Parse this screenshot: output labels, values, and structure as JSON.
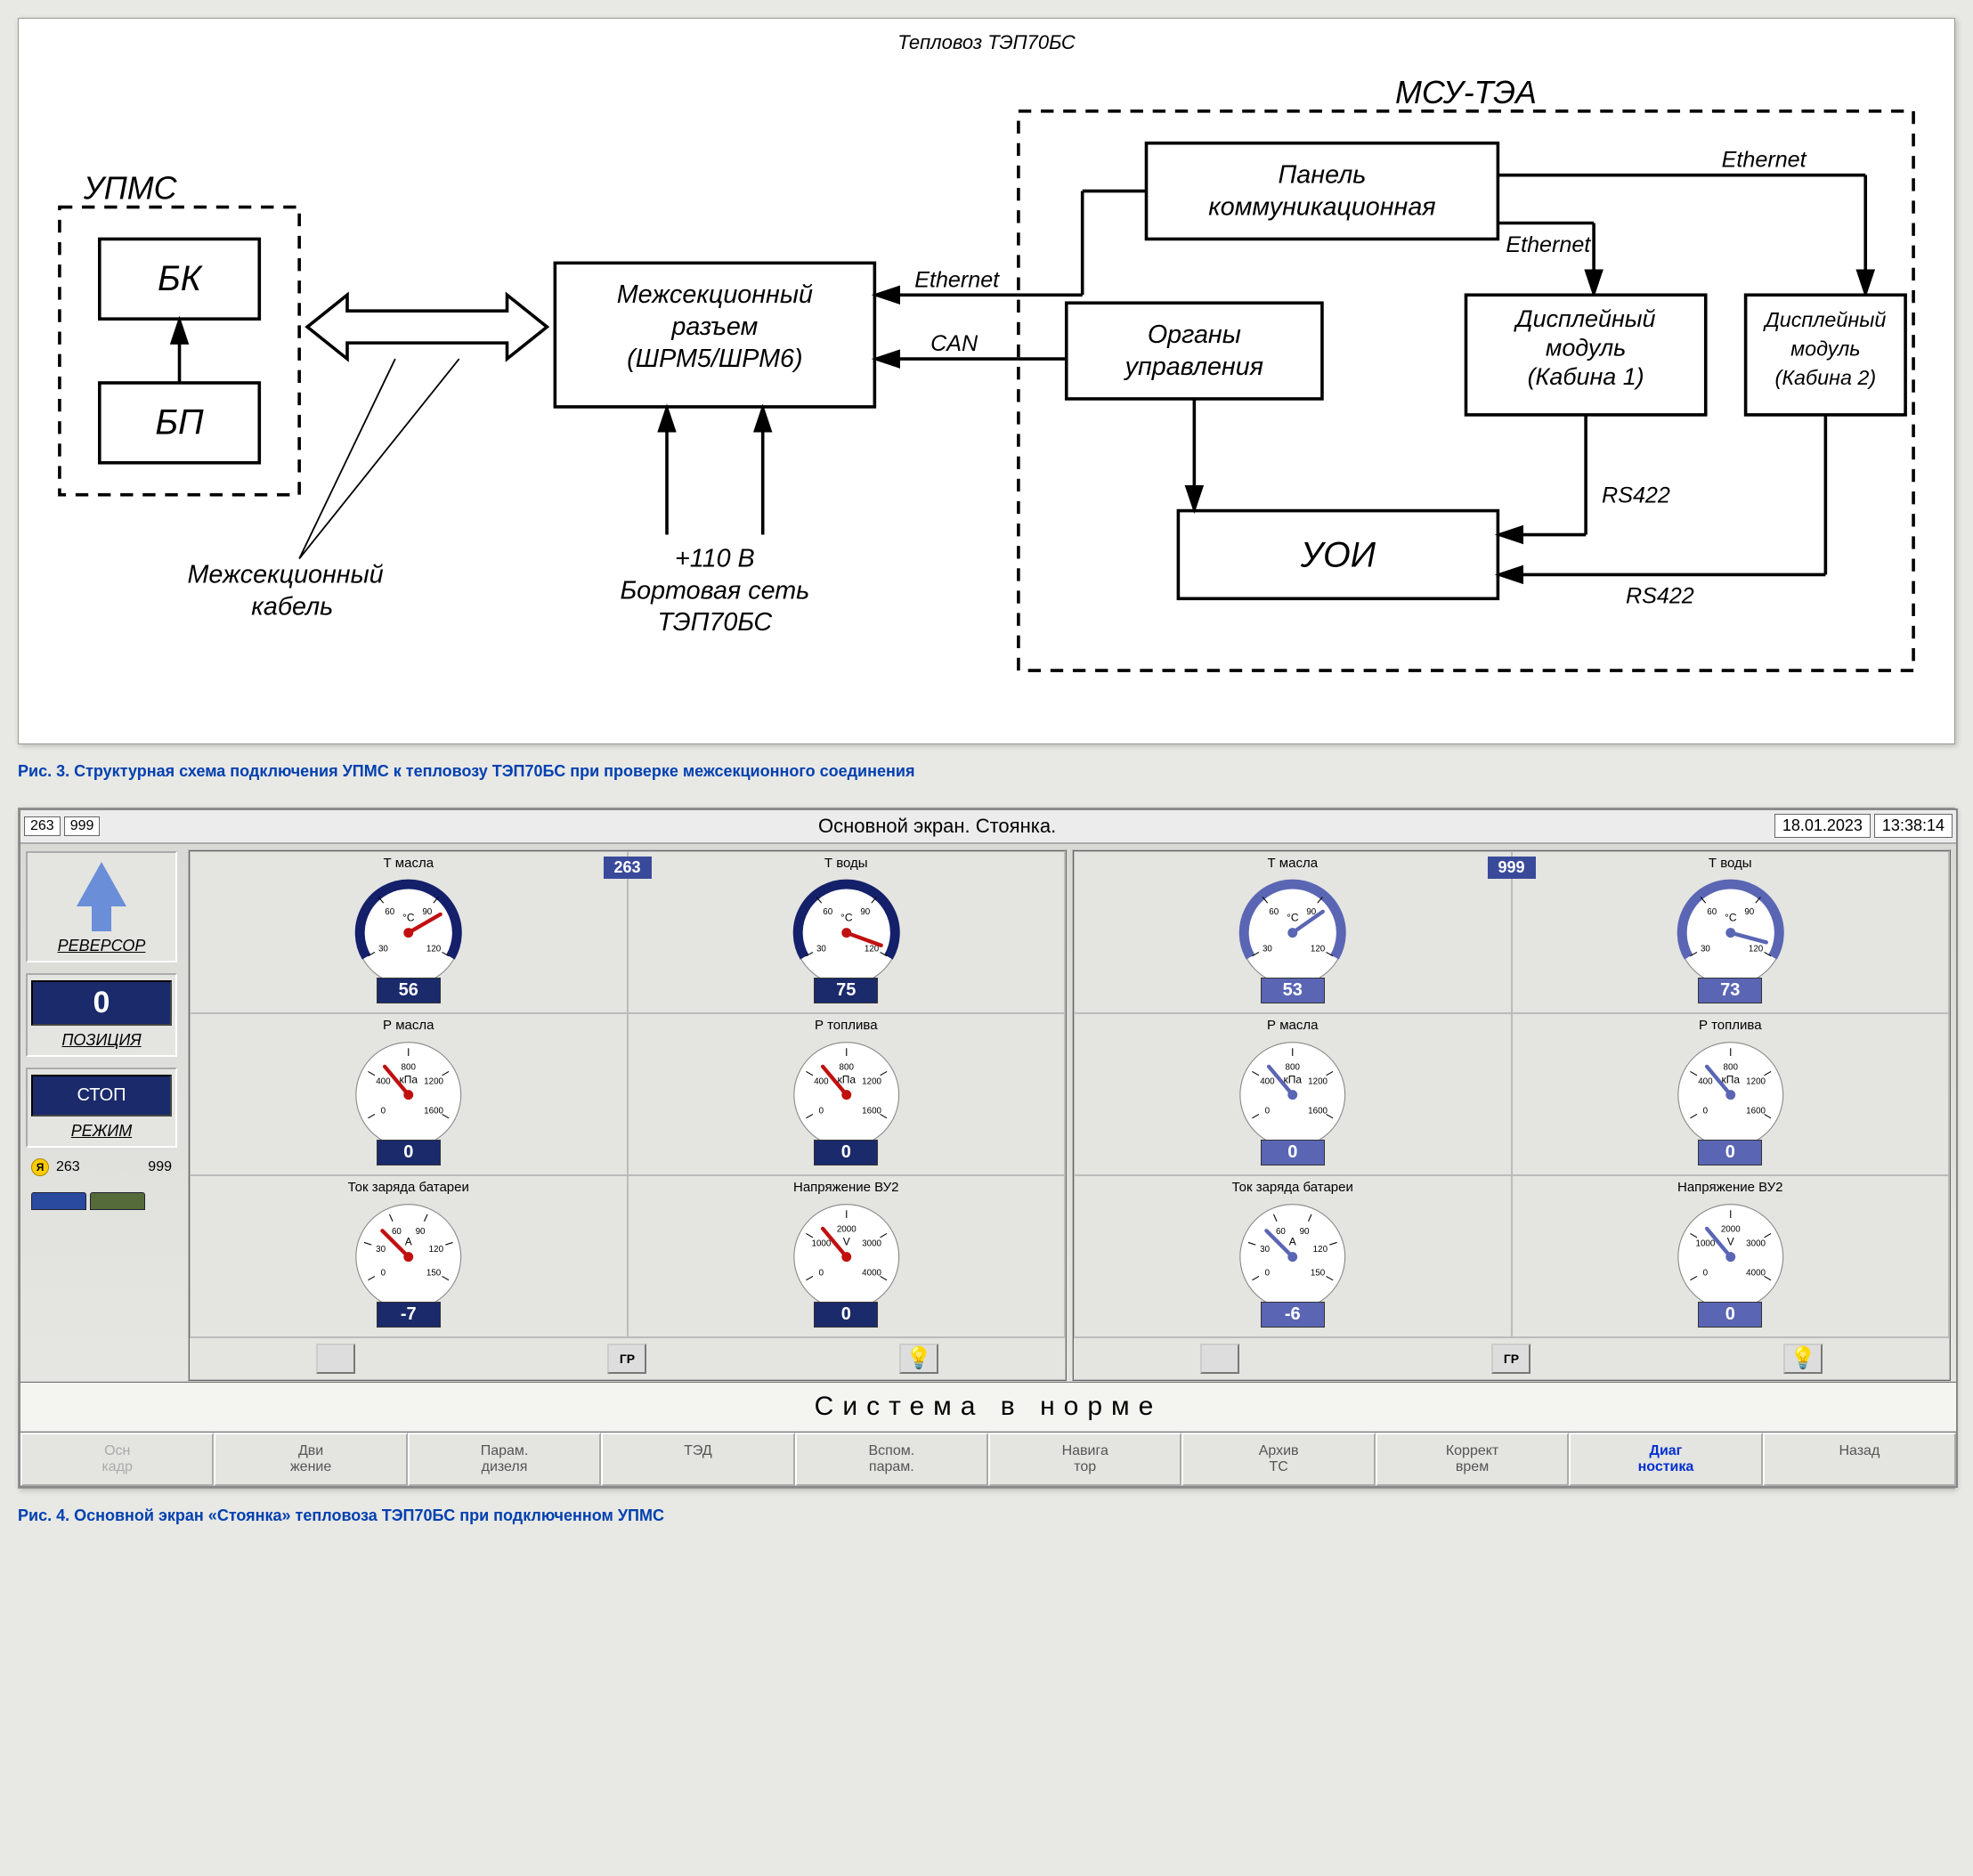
{
  "diagram": {
    "title": "Тепловоз ТЭП70БС",
    "group_upms": "УПМС",
    "group_msu": "МСУ-ТЭА",
    "nodes": {
      "bk": "БК",
      "bp": "БП",
      "conn": "Межсекционный\nразъем\n(ШРМ5/ШРМ6)",
      "panel": "Панель\nкоммуникационная",
      "organ": "Органы\nуправления",
      "disp1": "Дисплейный\nмодуль\n(Кабина 1)",
      "disp2": "Дисплейный\nмодуль\n(Кабина 2)",
      "uoi": "УОИ"
    },
    "labels": {
      "cable": "Межсекционный\nкабель",
      "power": "+110 В\nБортовая сеть\nТЭП70БС",
      "eth": "Ethernet",
      "can": "CAN",
      "rs": "RS422"
    },
    "colors": {
      "stroke": "#000000",
      "bg": "#ffffff"
    },
    "font": {
      "family": "serif-italic",
      "node_size": 18,
      "label_size": 14
    }
  },
  "caption3": "Рис. 3. Структурная схема подключения УПМС к тепловозу ТЭП70БС при проверке межсекционного соединения",
  "caption4": "Рис. 4. Основной экран «Стоянка» тепловоза ТЭП70БС при подключенном УПМС",
  "screen": {
    "chips": [
      "263",
      "999"
    ],
    "title": "Основной экран. Стоянка.",
    "date": "18.01.2023",
    "time": "13:38:14",
    "left": {
      "reversor": "РЕВЕРСОР",
      "position_val": "0",
      "position_lbl": "ПОЗИЦИЯ",
      "stop": "СТОП",
      "mode": "РЕЖИМ"
    },
    "loco_strip": {
      "ya": "Я",
      "a": "263",
      "b": "999"
    },
    "sections": [
      {
        "chip": "263",
        "readout_color": "#1a2a6b",
        "arc_color": "#14206a",
        "needle_color": "#c01010",
        "gauges": [
          [
            {
              "title": "Т масла",
              "unit": "°C",
              "ticks": [
                "30",
                "60",
                "90",
                "120"
              ],
              "value": "56",
              "angle": -30
            },
            {
              "title": "Т воды",
              "unit": "°C",
              "ticks": [
                "30",
                "60",
                "90",
                "120"
              ],
              "value": "75",
              "angle": 20
            }
          ],
          [
            {
              "title": "Р масла",
              "unit": "кПа",
              "ticks": [
                "0",
                "400",
                "800",
                "1200",
                "1600"
              ],
              "value": "0",
              "angle": -130
            },
            {
              "title": "Р топлива",
              "unit": "кПа",
              "ticks": [
                "0",
                "400",
                "800",
                "1200",
                "1600"
              ],
              "value": "0",
              "angle": -130
            }
          ],
          [
            {
              "title": "Ток заряда батареи",
              "unit": "А",
              "ticks": [
                "0",
                "30",
                "60",
                "90",
                "120",
                "150"
              ],
              "value": "-7",
              "angle": -135
            },
            {
              "title": "Напряжение ВУ2",
              "unit": "V",
              "ticks": [
                "0",
                "1000",
                "2000",
                "3000",
                "4000"
              ],
              "value": "0",
              "angle": -130
            }
          ]
        ]
      },
      {
        "chip": "999",
        "readout_color": "#5a66b4",
        "arc_color": "#5a66b4",
        "needle_color": "#5a66b4",
        "gauges": [
          [
            {
              "title": "Т масла",
              "unit": "°C",
              "ticks": [
                "30",
                "60",
                "90",
                "120"
              ],
              "value": "53",
              "angle": -35
            },
            {
              "title": "Т воды",
              "unit": "°C",
              "ticks": [
                "30",
                "60",
                "90",
                "120"
              ],
              "value": "73",
              "angle": 15
            }
          ],
          [
            {
              "title": "Р масла",
              "unit": "кПа",
              "ticks": [
                "0",
                "400",
                "800",
                "1200",
                "1600"
              ],
              "value": "0",
              "angle": -130
            },
            {
              "title": "Р топлива",
              "unit": "кПа",
              "ticks": [
                "0",
                "400",
                "800",
                "1200",
                "1600"
              ],
              "value": "0",
              "angle": -130
            }
          ],
          [
            {
              "title": "Ток заряда батареи",
              "unit": "А",
              "ticks": [
                "0",
                "30",
                "60",
                "90",
                "120",
                "150"
              ],
              "value": "-6",
              "angle": -135
            },
            {
              "title": "Напряжение ВУ2",
              "unit": "V",
              "ticks": [
                "0",
                "1000",
                "2000",
                "3000",
                "4000"
              ],
              "value": "0",
              "angle": -130
            }
          ]
        ]
      }
    ],
    "icons": {
      "gr": "ГР"
    },
    "status": "Система в норме",
    "tabs": [
      {
        "label": "Осн\nкадр",
        "state": "greyed"
      },
      {
        "label": "Дви\nжение",
        "state": ""
      },
      {
        "label": "Парам.\nдизеля",
        "state": ""
      },
      {
        "label": "ТЭД",
        "state": ""
      },
      {
        "label": "Вспом.\nпарам.",
        "state": ""
      },
      {
        "label": "Навига\nтор",
        "state": ""
      },
      {
        "label": "Архив\nТС",
        "state": ""
      },
      {
        "label": "Коррект\nврем",
        "state": ""
      },
      {
        "label": "Диаг\nностика",
        "state": "active"
      },
      {
        "label": "Назад",
        "state": ""
      }
    ]
  }
}
